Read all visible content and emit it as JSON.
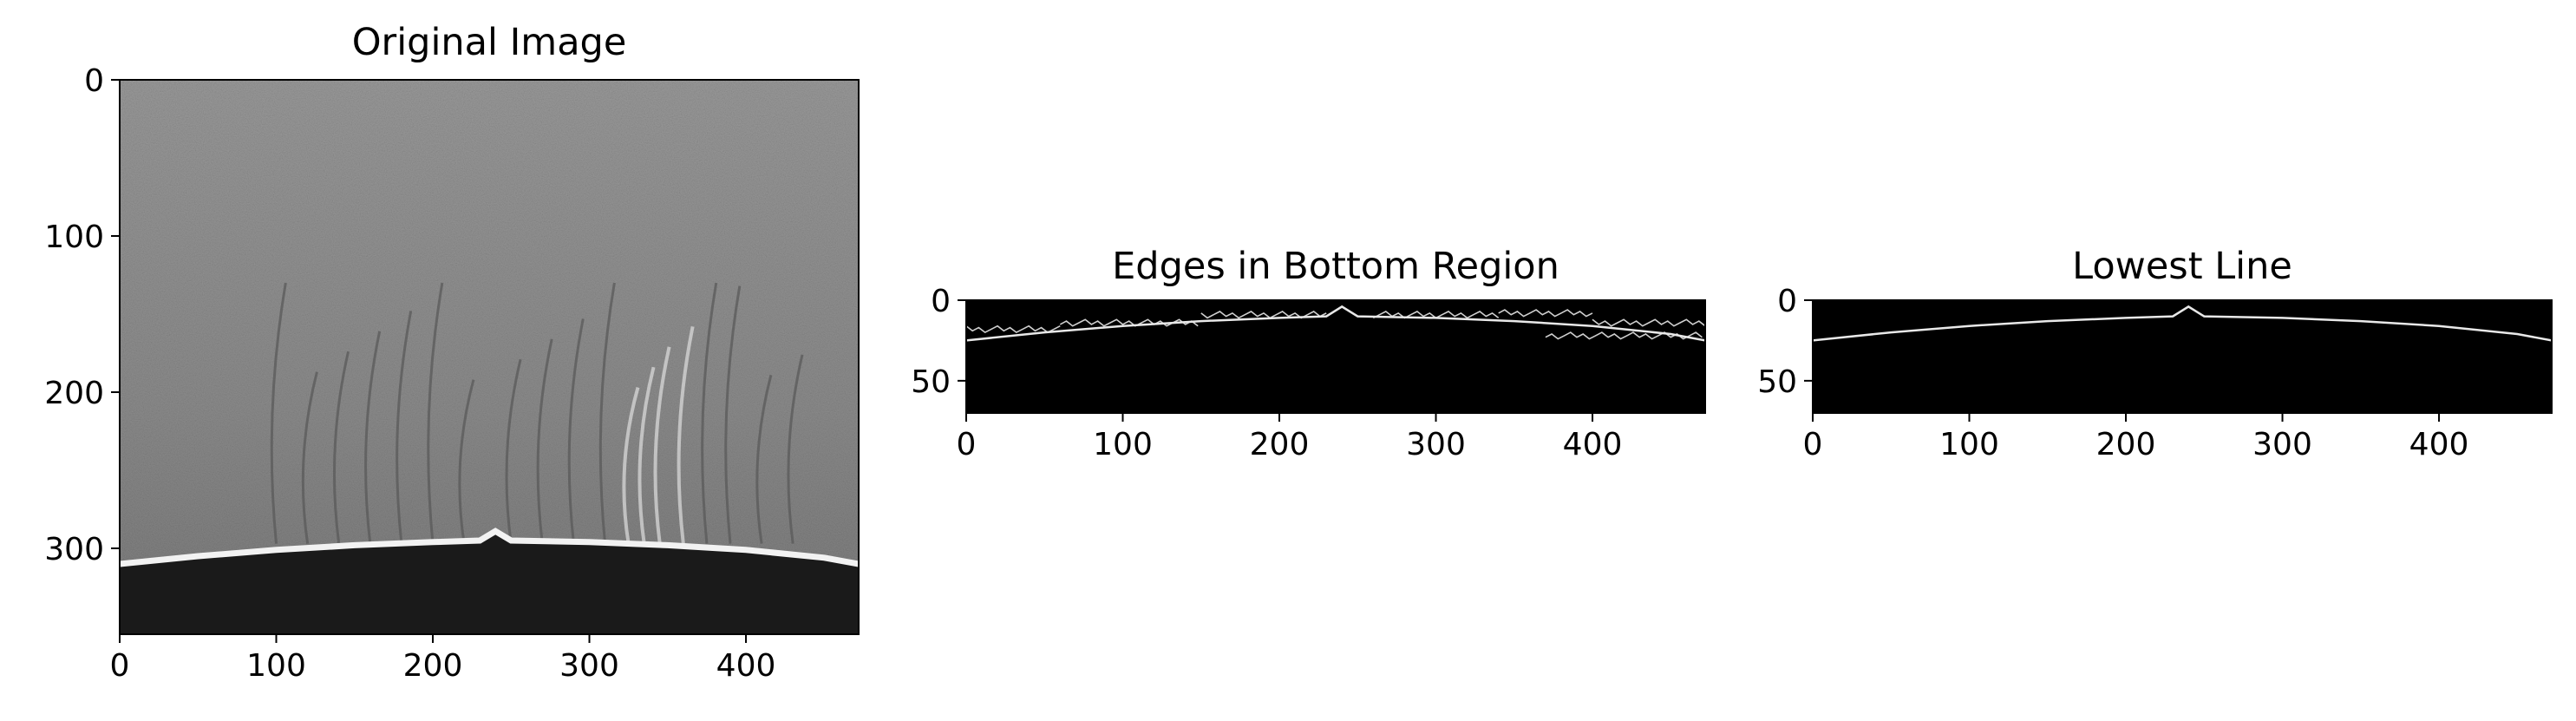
{
  "chart_data": [
    {
      "type": "image",
      "title": "Original Image",
      "xlim": [
        0,
        472
      ],
      "ylim": [
        355,
        0
      ],
      "xticks": [
        0,
        100,
        200,
        300,
        400
      ],
      "yticks": [
        0,
        100,
        200,
        300
      ],
      "background_color": "#8a8a8a",
      "edge_curve": {
        "x": [
          0,
          50,
          100,
          150,
          200,
          230,
          240,
          250,
          300,
          350,
          400,
          450,
          472
        ],
        "y": [
          310,
          305,
          301,
          298,
          296,
          295,
          289,
          295,
          296,
          298,
          301,
          306,
          310
        ]
      }
    },
    {
      "type": "image",
      "title": "Edges in Bottom Region",
      "xlim": [
        0,
        472
      ],
      "ylim": [
        70,
        0
      ],
      "xticks": [
        0,
        100,
        200,
        300,
        400
      ],
      "yticks": [
        0,
        50
      ],
      "background_color": "#000000",
      "edge_curve": {
        "x": [
          0,
          50,
          100,
          150,
          200,
          230,
          240,
          250,
          300,
          350,
          400,
          450,
          472
        ],
        "y": [
          25,
          20,
          16,
          13,
          11,
          10,
          4,
          10,
          11,
          13,
          16,
          21,
          25
        ]
      }
    },
    {
      "type": "image",
      "title": "Lowest Line",
      "xlim": [
        0,
        472
      ],
      "ylim": [
        70,
        0
      ],
      "xticks": [
        0,
        100,
        200,
        300,
        400
      ],
      "yticks": [
        0,
        50
      ],
      "background_color": "#000000",
      "edge_curve": {
        "x": [
          0,
          50,
          100,
          150,
          200,
          230,
          240,
          250,
          300,
          350,
          400,
          450,
          472
        ],
        "y": [
          25,
          20,
          16,
          13,
          11,
          10,
          4,
          10,
          11,
          13,
          16,
          21,
          25
        ]
      }
    }
  ]
}
